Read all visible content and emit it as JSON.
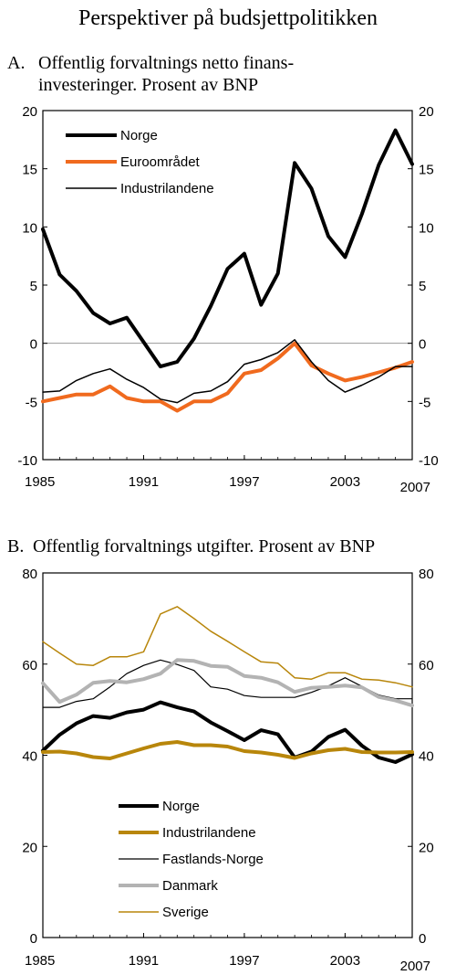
{
  "figure": {
    "title": "Perspektiver på budsjettpolitikken"
  },
  "chart_data": [
    {
      "type": "line",
      "panel_label": "A.",
      "title": "Offentlig forvaltnings netto finans-",
      "title_line2": "investeringer. Prosent av BNP",
      "xlim": [
        1985,
        2007
      ],
      "ylim": [
        -10,
        20
      ],
      "y_ticks": [
        -10,
        -5,
        0,
        5,
        10,
        15,
        20
      ],
      "x_ticks": [
        1985,
        1991,
        1997,
        2003,
        2007
      ],
      "x_tick_labels": [
        "1985",
        "1991",
        "1997",
        "2003",
        "2007"
      ],
      "zero_line": true,
      "legend_position": "top-left",
      "x": [
        1985,
        1986,
        1987,
        1988,
        1989,
        1990,
        1991,
        1992,
        1993,
        1994,
        1995,
        1996,
        1997,
        1998,
        1999,
        2000,
        2001,
        2002,
        2003,
        2004,
        2005,
        2006,
        2007
      ],
      "series": [
        {
          "name": "Norge",
          "color": "#000000",
          "width": 4,
          "values": [
            9.8,
            5.9,
            4.5,
            2.6,
            1.7,
            2.2,
            0.1,
            -2.0,
            -1.6,
            0.4,
            3.2,
            6.4,
            7.7,
            3.3,
            6.0,
            15.5,
            13.3,
            9.2,
            7.4,
            11.1,
            15.3,
            18.3,
            15.4
          ]
        },
        {
          "name": "Euroområdet",
          "color": "#F06A1E",
          "width": 4,
          "values": [
            -5.0,
            -4.7,
            -4.4,
            -4.4,
            -3.7,
            -4.7,
            -5.0,
            -5.0,
            -5.8,
            -5.0,
            -5.0,
            -4.3,
            -2.6,
            -2.3,
            -1.3,
            0.0,
            -1.9,
            -2.6,
            -3.2,
            -2.9,
            -2.5,
            -2.1,
            -1.6
          ]
        },
        {
          "name": "Industrilandene",
          "color": "#000000",
          "width": 1.5,
          "values": [
            -4.2,
            -4.1,
            -3.2,
            -2.6,
            -2.2,
            -3.1,
            -3.8,
            -4.8,
            -5.1,
            -4.3,
            -4.1,
            -3.3,
            -1.8,
            -1.4,
            -0.8,
            0.3,
            -1.6,
            -3.2,
            -4.2,
            -3.6,
            -2.9,
            -2.0,
            -2.0
          ]
        }
      ]
    },
    {
      "type": "line",
      "panel_label": "B.",
      "title": "Offentlig forvaltnings utgifter. Prosent av BNP",
      "xlim": [
        1985,
        2007
      ],
      "ylim": [
        0,
        80
      ],
      "y_ticks": [
        0,
        20,
        40,
        60,
        80
      ],
      "x_ticks": [
        1985,
        1991,
        1997,
        2003,
        2007
      ],
      "x_tick_labels": [
        "1985",
        "1991",
        "1997",
        "2003",
        "2007"
      ],
      "zero_line": false,
      "legend_position": "bottom-center",
      "x": [
        1985,
        1986,
        1987,
        1988,
        1989,
        1990,
        1991,
        1992,
        1993,
        1994,
        1995,
        1996,
        1997,
        1998,
        1999,
        2000,
        2001,
        2002,
        2003,
        2004,
        2005,
        2006,
        2007
      ],
      "series": [
        {
          "name": "Norge",
          "color": "#000000",
          "width": 4,
          "values": [
            41.0,
            44.5,
            47.0,
            48.6,
            48.2,
            49.4,
            50.0,
            51.6,
            50.5,
            49.6,
            47.2,
            45.3,
            43.3,
            45.5,
            44.6,
            39.5,
            40.8,
            44.0,
            45.6,
            42.1,
            39.5,
            38.5,
            40.2
          ]
        },
        {
          "name": "Industrilandene",
          "color": "#B8860B",
          "width": 4,
          "values": [
            40.7,
            40.8,
            40.4,
            39.6,
            39.3,
            40.4,
            41.5,
            42.5,
            42.9,
            42.2,
            42.2,
            41.9,
            40.9,
            40.6,
            40.1,
            39.4,
            40.4,
            41.1,
            41.4,
            40.7,
            40.6,
            40.6,
            40.7
          ]
        },
        {
          "name": "Fastlands-Norge",
          "color": "#000000",
          "width": 1.2,
          "values": [
            50.5,
            50.5,
            51.8,
            52.4,
            55.0,
            57.9,
            59.7,
            60.9,
            59.9,
            58.6,
            55.0,
            54.5,
            53.1,
            52.7,
            52.7,
            52.7,
            53.8,
            55.2,
            57.0,
            55.1,
            53.2,
            52.4,
            52.4
          ]
        },
        {
          "name": "Danmark",
          "color": "#B3B3B3",
          "width": 4,
          "values": [
            55.8,
            51.7,
            53.3,
            55.9,
            56.3,
            56.0,
            56.7,
            57.9,
            60.9,
            60.7,
            59.6,
            59.4,
            57.4,
            57.0,
            56.0,
            53.9,
            54.8,
            55.0,
            55.3,
            54.9,
            52.8,
            52.0,
            50.9
          ]
        },
        {
          "name": "Sverige",
          "color": "#B8860B",
          "width": 1.5,
          "values": [
            64.9,
            62.4,
            60.0,
            59.7,
            61.6,
            61.6,
            62.7,
            71.0,
            72.6,
            70.0,
            67.2,
            65.0,
            62.7,
            60.5,
            60.2,
            57.0,
            56.7,
            58.1,
            58.1,
            56.7,
            56.5,
            55.9,
            55.0
          ]
        }
      ]
    }
  ]
}
